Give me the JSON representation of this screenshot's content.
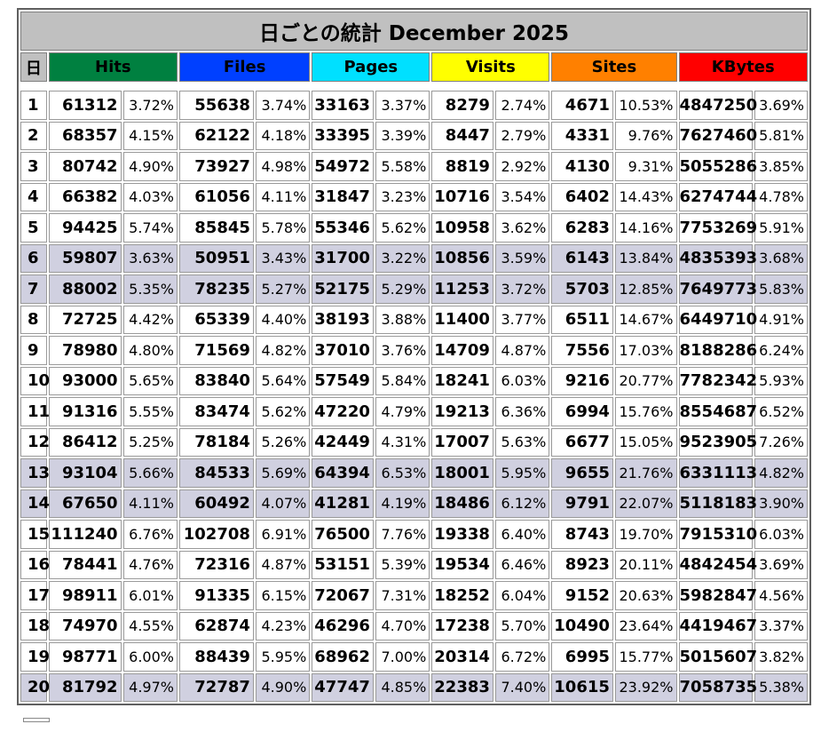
{
  "title": "日ごとの統計 December 2025",
  "headers": {
    "day": "日",
    "metrics": [
      {
        "label": "Hits",
        "bg": "#008040",
        "fg": "#000000"
      },
      {
        "label": "Files",
        "bg": "#0040FF",
        "fg": "#000000"
      },
      {
        "label": "Pages",
        "bg": "#00E0FF",
        "fg": "#000000"
      },
      {
        "label": "Visits",
        "bg": "#FFFF00",
        "fg": "#000000"
      },
      {
        "label": "Sites",
        "bg": "#FF8000",
        "fg": "#000000"
      },
      {
        "label": "KBytes",
        "bg": "#FF0000",
        "fg": "#000000"
      }
    ]
  },
  "weekend_row_color": "#D0D0E0",
  "rows": [
    {
      "day": "1",
      "hits": "61312",
      "hits_pct": "3.72%",
      "files": "55638",
      "files_pct": "3.74%",
      "pages": "33163",
      "pages_pct": "3.37%",
      "visits": "8279",
      "visits_pct": "2.74%",
      "sites": "4671",
      "sites_pct": "10.53%",
      "kbytes": "4847250",
      "kbytes_pct": "3.69%",
      "weekend": false
    },
    {
      "day": "2",
      "hits": "68357",
      "hits_pct": "4.15%",
      "files": "62122",
      "files_pct": "4.18%",
      "pages": "33395",
      "pages_pct": "3.39%",
      "visits": "8447",
      "visits_pct": "2.79%",
      "sites": "4331",
      "sites_pct": "9.76%",
      "kbytes": "7627460",
      "kbytes_pct": "5.81%",
      "weekend": false
    },
    {
      "day": "3",
      "hits": "80742",
      "hits_pct": "4.90%",
      "files": "73927",
      "files_pct": "4.98%",
      "pages": "54972",
      "pages_pct": "5.58%",
      "visits": "8819",
      "visits_pct": "2.92%",
      "sites": "4130",
      "sites_pct": "9.31%",
      "kbytes": "5055286",
      "kbytes_pct": "3.85%",
      "weekend": false
    },
    {
      "day": "4",
      "hits": "66382",
      "hits_pct": "4.03%",
      "files": "61056",
      "files_pct": "4.11%",
      "pages": "31847",
      "pages_pct": "3.23%",
      "visits": "10716",
      "visits_pct": "3.54%",
      "sites": "6402",
      "sites_pct": "14.43%",
      "kbytes": "6274744",
      "kbytes_pct": "4.78%",
      "weekend": false
    },
    {
      "day": "5",
      "hits": "94425",
      "hits_pct": "5.74%",
      "files": "85845",
      "files_pct": "5.78%",
      "pages": "55346",
      "pages_pct": "5.62%",
      "visits": "10958",
      "visits_pct": "3.62%",
      "sites": "6283",
      "sites_pct": "14.16%",
      "kbytes": "7753269",
      "kbytes_pct": "5.91%",
      "weekend": false
    },
    {
      "day": "6",
      "hits": "59807",
      "hits_pct": "3.63%",
      "files": "50951",
      "files_pct": "3.43%",
      "pages": "31700",
      "pages_pct": "3.22%",
      "visits": "10856",
      "visits_pct": "3.59%",
      "sites": "6143",
      "sites_pct": "13.84%",
      "kbytes": "4835393",
      "kbytes_pct": "3.68%",
      "weekend": true
    },
    {
      "day": "7",
      "hits": "88002",
      "hits_pct": "5.35%",
      "files": "78235",
      "files_pct": "5.27%",
      "pages": "52175",
      "pages_pct": "5.29%",
      "visits": "11253",
      "visits_pct": "3.72%",
      "sites": "5703",
      "sites_pct": "12.85%",
      "kbytes": "7649773",
      "kbytes_pct": "5.83%",
      "weekend": true
    },
    {
      "day": "8",
      "hits": "72725",
      "hits_pct": "4.42%",
      "files": "65339",
      "files_pct": "4.40%",
      "pages": "38193",
      "pages_pct": "3.88%",
      "visits": "11400",
      "visits_pct": "3.77%",
      "sites": "6511",
      "sites_pct": "14.67%",
      "kbytes": "6449710",
      "kbytes_pct": "4.91%",
      "weekend": false
    },
    {
      "day": "9",
      "hits": "78980",
      "hits_pct": "4.80%",
      "files": "71569",
      "files_pct": "4.82%",
      "pages": "37010",
      "pages_pct": "3.76%",
      "visits": "14709",
      "visits_pct": "4.87%",
      "sites": "7556",
      "sites_pct": "17.03%",
      "kbytes": "8188286",
      "kbytes_pct": "6.24%",
      "weekend": false
    },
    {
      "day": "10",
      "hits": "93000",
      "hits_pct": "5.65%",
      "files": "83840",
      "files_pct": "5.64%",
      "pages": "57549",
      "pages_pct": "5.84%",
      "visits": "18241",
      "visits_pct": "6.03%",
      "sites": "9216",
      "sites_pct": "20.77%",
      "kbytes": "7782342",
      "kbytes_pct": "5.93%",
      "weekend": false
    },
    {
      "day": "11",
      "hits": "91316",
      "hits_pct": "5.55%",
      "files": "83474",
      "files_pct": "5.62%",
      "pages": "47220",
      "pages_pct": "4.79%",
      "visits": "19213",
      "visits_pct": "6.36%",
      "sites": "6994",
      "sites_pct": "15.76%",
      "kbytes": "8554687",
      "kbytes_pct": "6.52%",
      "weekend": false
    },
    {
      "day": "12",
      "hits": "86412",
      "hits_pct": "5.25%",
      "files": "78184",
      "files_pct": "5.26%",
      "pages": "42449",
      "pages_pct": "4.31%",
      "visits": "17007",
      "visits_pct": "5.63%",
      "sites": "6677",
      "sites_pct": "15.05%",
      "kbytes": "9523905",
      "kbytes_pct": "7.26%",
      "weekend": false
    },
    {
      "day": "13",
      "hits": "93104",
      "hits_pct": "5.66%",
      "files": "84533",
      "files_pct": "5.69%",
      "pages": "64394",
      "pages_pct": "6.53%",
      "visits": "18001",
      "visits_pct": "5.95%",
      "sites": "9655",
      "sites_pct": "21.76%",
      "kbytes": "6331113",
      "kbytes_pct": "4.82%",
      "weekend": true
    },
    {
      "day": "14",
      "hits": "67650",
      "hits_pct": "4.11%",
      "files": "60492",
      "files_pct": "4.07%",
      "pages": "41281",
      "pages_pct": "4.19%",
      "visits": "18486",
      "visits_pct": "6.12%",
      "sites": "9791",
      "sites_pct": "22.07%",
      "kbytes": "5118183",
      "kbytes_pct": "3.90%",
      "weekend": true
    },
    {
      "day": "15",
      "hits": "111240",
      "hits_pct": "6.76%",
      "files": "102708",
      "files_pct": "6.91%",
      "pages": "76500",
      "pages_pct": "7.76%",
      "visits": "19338",
      "visits_pct": "6.40%",
      "sites": "8743",
      "sites_pct": "19.70%",
      "kbytes": "7915310",
      "kbytes_pct": "6.03%",
      "weekend": false
    },
    {
      "day": "16",
      "hits": "78441",
      "hits_pct": "4.76%",
      "files": "72316",
      "files_pct": "4.87%",
      "pages": "53151",
      "pages_pct": "5.39%",
      "visits": "19534",
      "visits_pct": "6.46%",
      "sites": "8923",
      "sites_pct": "20.11%",
      "kbytes": "4842454",
      "kbytes_pct": "3.69%",
      "weekend": false
    },
    {
      "day": "17",
      "hits": "98911",
      "hits_pct": "6.01%",
      "files": "91335",
      "files_pct": "6.15%",
      "pages": "72067",
      "pages_pct": "7.31%",
      "visits": "18252",
      "visits_pct": "6.04%",
      "sites": "9152",
      "sites_pct": "20.63%",
      "kbytes": "5982847",
      "kbytes_pct": "4.56%",
      "weekend": false
    },
    {
      "day": "18",
      "hits": "74970",
      "hits_pct": "4.55%",
      "files": "62874",
      "files_pct": "4.23%",
      "pages": "46296",
      "pages_pct": "4.70%",
      "visits": "17238",
      "visits_pct": "5.70%",
      "sites": "10490",
      "sites_pct": "23.64%",
      "kbytes": "4419467",
      "kbytes_pct": "3.37%",
      "weekend": false
    },
    {
      "day": "19",
      "hits": "98771",
      "hits_pct": "6.00%",
      "files": "88439",
      "files_pct": "5.95%",
      "pages": "68962",
      "pages_pct": "7.00%",
      "visits": "20314",
      "visits_pct": "6.72%",
      "sites": "6995",
      "sites_pct": "15.77%",
      "kbytes": "5015607",
      "kbytes_pct": "3.82%",
      "weekend": false
    },
    {
      "day": "20",
      "hits": "81792",
      "hits_pct": "4.97%",
      "files": "72787",
      "files_pct": "4.90%",
      "pages": "47747",
      "pages_pct": "4.85%",
      "visits": "22383",
      "visits_pct": "7.40%",
      "sites": "10615",
      "sites_pct": "23.92%",
      "kbytes": "7058735",
      "kbytes_pct": "5.38%",
      "weekend": true
    }
  ]
}
